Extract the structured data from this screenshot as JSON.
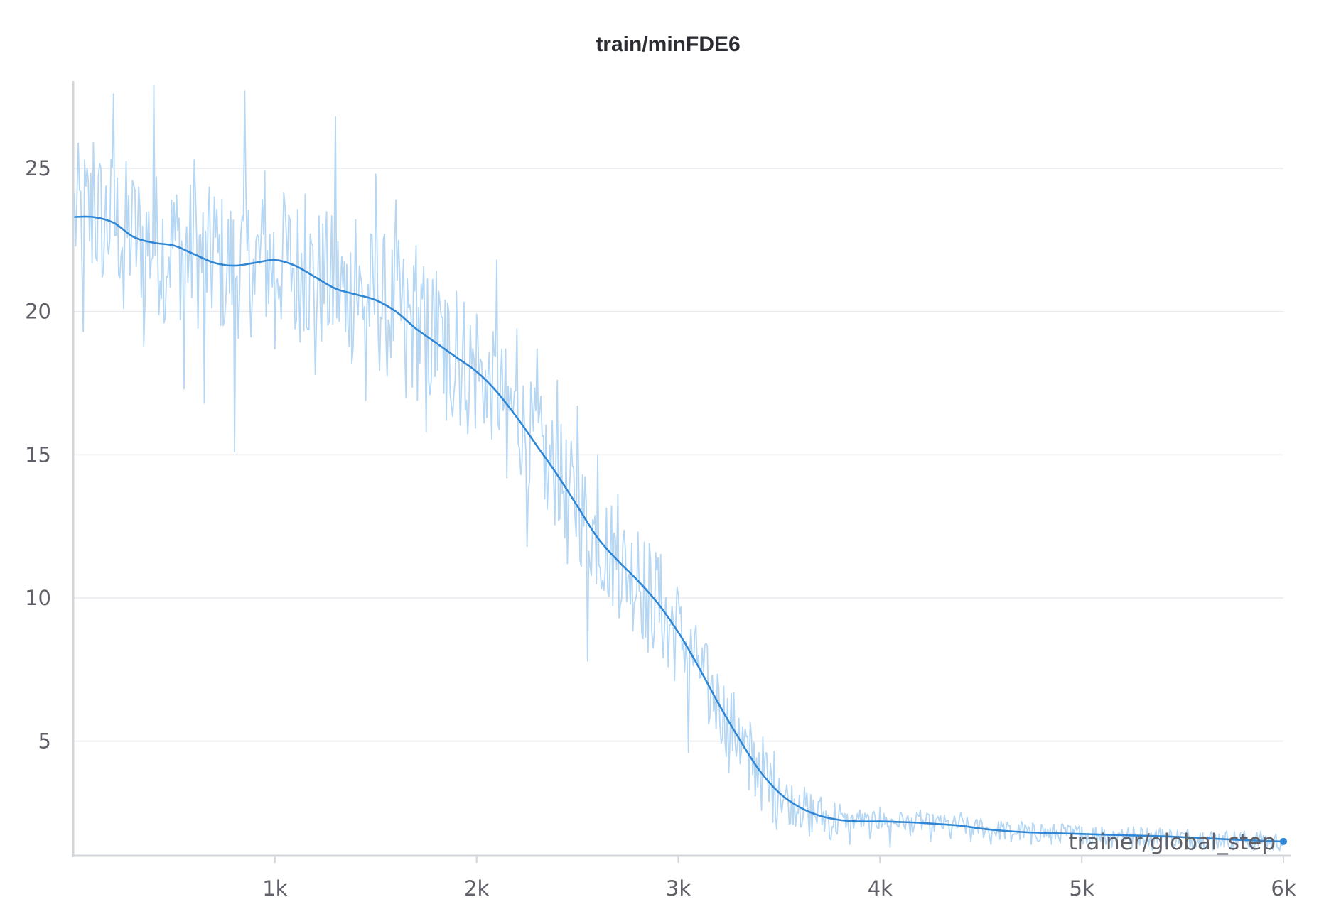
{
  "chart_data": {
    "type": "line",
    "title": "train/minFDE6",
    "xlabel": "trainer/global_step",
    "ylabel": "",
    "xlim": [
      0,
      6000
    ],
    "ylim": [
      1,
      28
    ],
    "grid": true,
    "x_ticks": [
      {
        "value": 1000,
        "label": "1k"
      },
      {
        "value": 2000,
        "label": "2k"
      },
      {
        "value": 3000,
        "label": "3k"
      },
      {
        "value": 4000,
        "label": "4k"
      },
      {
        "value": 5000,
        "label": "5k"
      },
      {
        "value": 6000,
        "label": "6k"
      }
    ],
    "y_ticks": [
      {
        "value": 5,
        "label": "5"
      },
      {
        "value": 10,
        "label": "10"
      },
      {
        "value": 15,
        "label": "15"
      },
      {
        "value": 20,
        "label": "20"
      },
      {
        "value": 25,
        "label": "25"
      }
    ],
    "colors": {
      "smoothed": "#2f86d4",
      "raw": "#a9d0f1"
    },
    "series": [
      {
        "kind": "smoothed",
        "x": [
          0,
          100,
          200,
          300,
          400,
          500,
          600,
          700,
          800,
          900,
          1000,
          1100,
          1200,
          1300,
          1400,
          1500,
          1600,
          1700,
          1800,
          1900,
          2000,
          2100,
          2200,
          2300,
          2400,
          2500,
          2600,
          2700,
          2800,
          2900,
          3000,
          3100,
          3200,
          3300,
          3400,
          3500,
          3600,
          3700,
          3800,
          3900,
          4000,
          4100,
          4200,
          4300,
          4400,
          4500,
          4600,
          4700,
          4800,
          4900,
          5000,
          5100,
          5200,
          5300,
          5400,
          5500,
          5600,
          5700,
          5800,
          5900,
          6000
        ],
        "y": [
          23.3,
          23.3,
          23.1,
          22.6,
          22.4,
          22.3,
          22.0,
          21.7,
          21.6,
          21.7,
          21.8,
          21.6,
          21.2,
          20.8,
          20.6,
          20.4,
          20.0,
          19.4,
          18.9,
          18.4,
          17.9,
          17.2,
          16.3,
          15.3,
          14.3,
          13.2,
          12.1,
          11.3,
          10.6,
          9.8,
          8.8,
          7.6,
          6.3,
          5.1,
          4.0,
          3.2,
          2.7,
          2.4,
          2.25,
          2.2,
          2.2,
          2.18,
          2.15,
          2.1,
          2.05,
          1.95,
          1.88,
          1.83,
          1.8,
          1.78,
          1.76,
          1.74,
          1.72,
          1.7,
          1.68,
          1.65,
          1.62,
          1.58,
          1.55,
          1.52,
          1.5
        ]
      },
      {
        "kind": "raw",
        "x": [
          0,
          50,
          100,
          150,
          200,
          250,
          300,
          350,
          400,
          450,
          500,
          550,
          600,
          650,
          700,
          750,
          800,
          850,
          900,
          950,
          1000,
          1050,
          1100,
          1150,
          1200,
          1250,
          1300,
          1350,
          1400,
          1450,
          1500,
          1550,
          1600,
          1650,
          1700,
          1750,
          1800,
          1850,
          1900,
          1950,
          2000,
          2050,
          2100,
          2150,
          2200,
          2250,
          2300,
          2350,
          2400,
          2450,
          2500,
          2550,
          2600,
          2650,
          2700,
          2750,
          2800,
          2850,
          2900,
          2950,
          3000,
          3050,
          3100,
          3150,
          3200,
          3250,
          3300,
          3350,
          3400,
          3450,
          3500,
          3550,
          3600,
          3650,
          3700,
          3750,
          3800,
          3850,
          3900,
          3950,
          4000,
          4050,
          4100,
          4150,
          4200,
          4250,
          4300,
          4350,
          4400,
          4450,
          4500,
          4550,
          4600,
          4650,
          4700,
          4750,
          4800,
          4850,
          4900,
          4950,
          5000,
          5050,
          5100,
          5150,
          5200,
          5250,
          5300,
          5350,
          5400,
          5450,
          5500,
          5550,
          5600,
          5650,
          5700,
          5750,
          5800,
          5850,
          5900,
          5950,
          6000
        ],
        "y": [
          22.8,
          19.3,
          25.9,
          21.4,
          27.6,
          20.1,
          24.4,
          18.8,
          27.9,
          19.6,
          23.8,
          17.3,
          25.3,
          16.8,
          24.0,
          19.7,
          15.1,
          27.7,
          20.6,
          24.9,
          18.7,
          23.7,
          19.4,
          24.1,
          17.8,
          22.5,
          26.8,
          19.3,
          23.2,
          16.9,
          24.8,
          19.2,
          23.9,
          17.0,
          22.3,
          15.8,
          21.4,
          16.2,
          20.7,
          16.9,
          19.9,
          16.3,
          21.8,
          14.2,
          19.4,
          11.8,
          18.7,
          13.1,
          17.6,
          11.2,
          16.7,
          7.8,
          15.0,
          10.2,
          13.6,
          10.7,
          12.3,
          8.1,
          11.4,
          7.6,
          10.1,
          4.6,
          8.0,
          5.6,
          6.9,
          3.9,
          5.8,
          3.3,
          4.6,
          2.9,
          3.7,
          2.1,
          3.1,
          1.7,
          2.9,
          1.6,
          2.8,
          1.4,
          2.6,
          1.6,
          2.7,
          1.3,
          2.5,
          1.7,
          2.6,
          1.5,
          2.4,
          1.6,
          2.5,
          1.5,
          2.3,
          1.4,
          2.2,
          1.5,
          2.2,
          1.4,
          2.1,
          1.4,
          2.1,
          1.3,
          2.0,
          1.4,
          2.0,
          1.3,
          1.9,
          1.3,
          1.9,
          1.2,
          1.9,
          1.3,
          1.8,
          1.2,
          1.8,
          1.2,
          1.7,
          1.2,
          1.7,
          1.2,
          1.7,
          1.2,
          1.5
        ]
      }
    ]
  }
}
